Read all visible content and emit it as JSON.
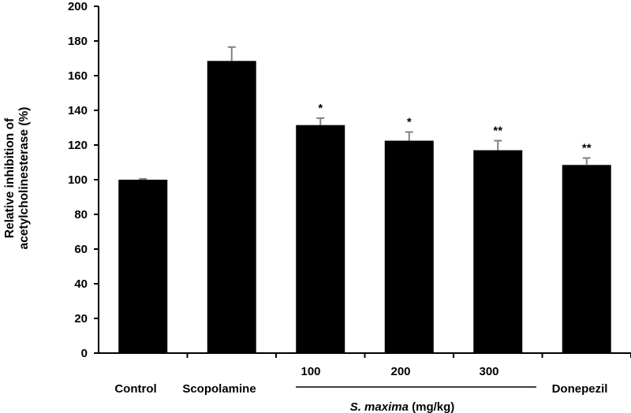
{
  "chart_data": {
    "type": "bar",
    "categories": [
      "Control",
      "Scopolamine",
      "100",
      "200",
      "300",
      "Donepezil"
    ],
    "values": [
      100,
      168.5,
      131.5,
      122.5,
      117,
      108.5
    ],
    "errors": [
      0.5,
      8,
      4,
      5,
      5.5,
      4
    ],
    "significance": [
      "",
      "",
      "*",
      "*",
      "**",
      "**"
    ],
    "group_label": {
      "italic": "S. maxima",
      "rest": " (mg/kg)"
    },
    "ylabel_lines": [
      "Relative inhibition of",
      "acetylcholinesterase (%)"
    ],
    "ylim": [
      0,
      200
    ],
    "yticks": [
      0,
      20,
      40,
      60,
      80,
      100,
      120,
      140,
      160,
      180,
      200
    ],
    "colors": {
      "bar": "#000000",
      "error_bar": "#808080",
      "axis": "#000000"
    }
  }
}
